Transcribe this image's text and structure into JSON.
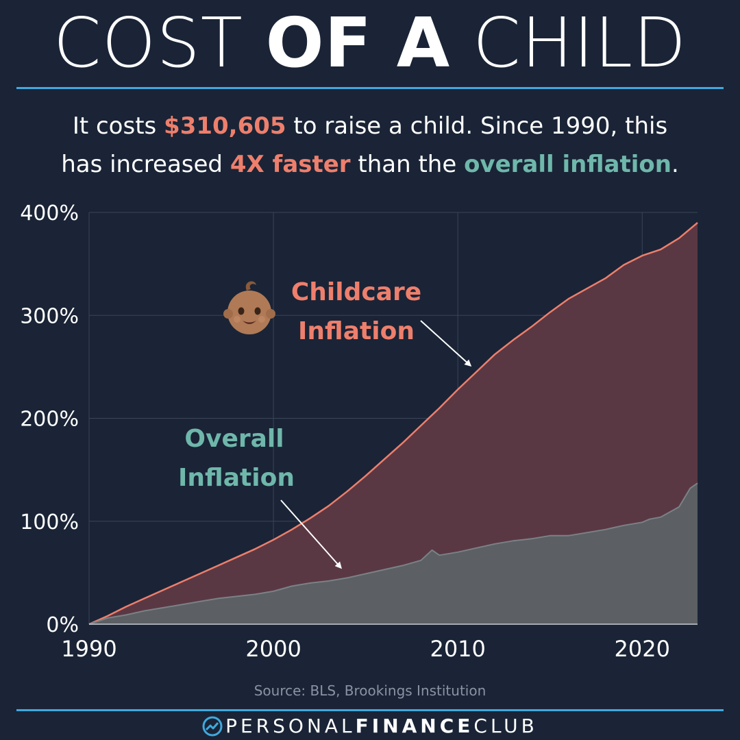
{
  "header": {
    "title_part1": "COST ",
    "title_part2": "OF A",
    "title_part3": " CHILD"
  },
  "subtitle": {
    "t1": "It costs ",
    "cost": "$310,605",
    "t2": " to raise a child. Since 1990, this",
    "t3": "has increased ",
    "faster": "4X faster",
    "t4": " than the ",
    "overall": "overall inflation",
    "t5": "."
  },
  "footer": {
    "source": "Source: BLS, Brookings Institution",
    "brand_light1": "PERSONAL",
    "brand_bold": "FINANCE",
    "brand_light2": "CLUB"
  },
  "colors": {
    "background": "#1a2436",
    "accent_rule": "#3fa9de",
    "childcare": "#ee7f6c",
    "overall": "#6fb7ab"
  },
  "chart_data": {
    "type": "area",
    "title": "",
    "xlabel": "",
    "ylabel": "",
    "xlim": [
      1990,
      2023
    ],
    "ylim": [
      0,
      400
    ],
    "x_ticks": [
      1990,
      2000,
      2010,
      2020
    ],
    "x_tick_labels": [
      "1990",
      "2000",
      "2010",
      "2020"
    ],
    "y_ticks": [
      0,
      100,
      200,
      300,
      400
    ],
    "y_tick_labels": [
      "0%",
      "100%",
      "200%",
      "300%",
      "400%"
    ],
    "grid": true,
    "series": [
      {
        "name": "Childcare Inflation",
        "label_lines": [
          "Childcare",
          "Inflation"
        ],
        "icon": "baby-face-icon",
        "color": "#ee7f6c",
        "x": [
          1990,
          1991,
          1992,
          1993,
          1994,
          1995,
          1996,
          1997,
          1998,
          1999,
          2000,
          2001,
          2002,
          2003,
          2004,
          2005,
          2006,
          2007,
          2008,
          2009,
          2010,
          2011,
          2012,
          2013,
          2014,
          2015,
          2016,
          2017,
          2018,
          2019,
          2020,
          2021,
          2022,
          2023
        ],
        "values": [
          0,
          8,
          17,
          25,
          33,
          41,
          49,
          57,
          65,
          73,
          82,
          92,
          103,
          115,
          129,
          144,
          160,
          176,
          193,
          210,
          228,
          245,
          262,
          276,
          289,
          303,
          316,
          326,
          336,
          349,
          358,
          364,
          375,
          390
        ]
      },
      {
        "name": "Overall Inflation",
        "label_lines": [
          "Overall",
          "Inflation"
        ],
        "color": "#6fb7ab",
        "x": [
          1990,
          1991,
          1992,
          1993,
          1994,
          1995,
          1996,
          1997,
          1998,
          1999,
          2000,
          2001,
          2002,
          2003,
          2004,
          2005,
          2006,
          2007,
          2008,
          2008.6,
          2009,
          2010,
          2011,
          2012,
          2013,
          2014,
          2015,
          2016,
          2017,
          2018,
          2019,
          2020,
          2020.4,
          2021,
          2022,
          2022.6,
          2023
        ],
        "values": [
          0,
          6,
          9,
          13,
          16,
          19,
          22,
          25,
          27,
          29,
          32,
          37,
          40,
          42,
          45,
          49,
          53,
          57,
          62,
          72,
          67,
          70,
          74,
          78,
          81,
          83,
          86,
          86,
          89,
          92,
          96,
          99,
          102,
          104,
          114,
          132,
          137
        ]
      }
    ]
  }
}
